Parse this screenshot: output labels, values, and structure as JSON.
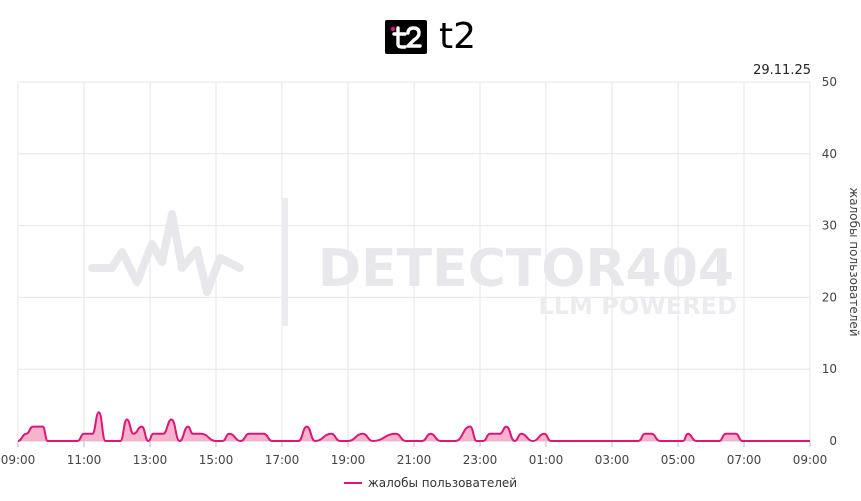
{
  "header": {
    "brand": "t2",
    "logo_icon": "t2-logo-icon"
  },
  "date": "29.11.25",
  "colors": {
    "series": "#e0157a",
    "fill": "#f3a6c4",
    "grid": "#e6e6e6",
    "watermark": "#e8e8ec"
  },
  "watermark": {
    "line1": "DETECTOR404",
    "line2": "LLM POWERED"
  },
  "legend": {
    "label": "жалобы пользователей"
  },
  "chart_data": {
    "type": "area",
    "title": "",
    "xlabel": "",
    "ylabel": "жалобы пользователей",
    "ylim": [
      0,
      50
    ],
    "y_ticks": [
      "0",
      "10",
      "20",
      "30",
      "40",
      "50"
    ],
    "y_axis_side": "right",
    "x_ticks": [
      "09:00",
      "11:00",
      "13:00",
      "15:00",
      "17:00",
      "19:00",
      "21:00",
      "23:00",
      "01:00",
      "03:00",
      "05:00",
      "07:00",
      "09:00"
    ],
    "xlim_hours": [
      0,
      24
    ],
    "grid": true,
    "legend_position": "bottom",
    "series": [
      {
        "name": "жалобы пользователей",
        "x_hours_since_0900": [
          0,
          0.25,
          0.45,
          0.75,
          0.9,
          1.8,
          2.0,
          2.25,
          2.45,
          2.65,
          3.1,
          3.3,
          3.5,
          3.75,
          3.95,
          4.1,
          4.4,
          4.65,
          4.9,
          5.15,
          5.3,
          5.55,
          6.0,
          6.2,
          6.4,
          6.75,
          7.0,
          7.3,
          7.45,
          7.7,
          8.5,
          8.75,
          9.0,
          9.5,
          9.75,
          10.0,
          10.45,
          10.75,
          11.45,
          11.75,
          11.95,
          12.25,
          12.5,
          12.8,
          12.95,
          13.25,
          13.7,
          13.9,
          14.1,
          14.3,
          14.6,
          14.8,
          15.05,
          15.25,
          15.6,
          15.95,
          16.15,
          18.8,
          19.0,
          19.2,
          19.45,
          20.15,
          20.3,
          20.55,
          21.25,
          21.45,
          21.75,
          21.95,
          24.0
        ],
        "y": [
          0,
          1,
          2,
          2,
          0,
          0,
          1,
          1,
          4,
          0,
          0,
          3,
          1,
          2,
          0,
          1,
          1,
          3,
          0,
          2,
          1,
          1,
          0,
          0,
          1,
          0,
          1,
          1,
          1,
          0,
          0,
          2,
          0,
          1,
          0,
          0,
          1,
          0,
          1,
          0,
          0,
          0,
          1,
          0,
          0,
          0,
          2,
          0,
          0,
          1,
          1,
          2,
          0,
          1,
          0,
          1,
          0,
          0,
          1,
          1,
          0,
          0,
          1,
          0,
          0,
          1,
          1,
          0,
          0
        ]
      }
    ]
  }
}
